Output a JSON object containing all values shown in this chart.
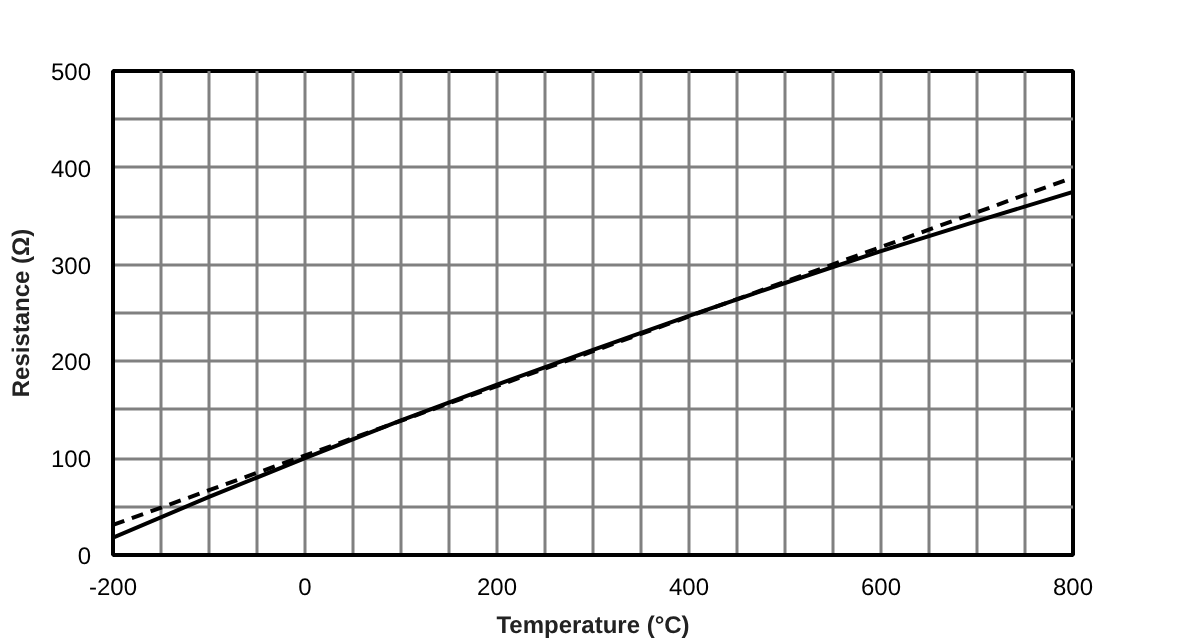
{
  "chart_data": {
    "type": "line",
    "xlabel": "Temperature (°C)",
    "ylabel": "Resistance (Ω)",
    "xlim": [
      -200,
      800
    ],
    "ylim": [
      0,
      500
    ],
    "xticks": [
      -200,
      0,
      200,
      400,
      600,
      800
    ],
    "yticks": [
      0,
      100,
      200,
      300,
      400,
      500
    ],
    "grid": true,
    "series": [
      {
        "color": "#000000",
        "line_style": "solid",
        "x": [
          -200,
          -100,
          0,
          100,
          200,
          300,
          400,
          500,
          600,
          700,
          800
        ],
        "values": [
          18,
          60,
          100,
          139,
          176,
          212,
          247,
          281,
          314,
          345,
          375
        ]
      },
      {
        "color": "#000000",
        "line_style": "dashed",
        "x": [
          -200,
          800
        ],
        "values": [
          31,
          390
        ]
      }
    ]
  }
}
